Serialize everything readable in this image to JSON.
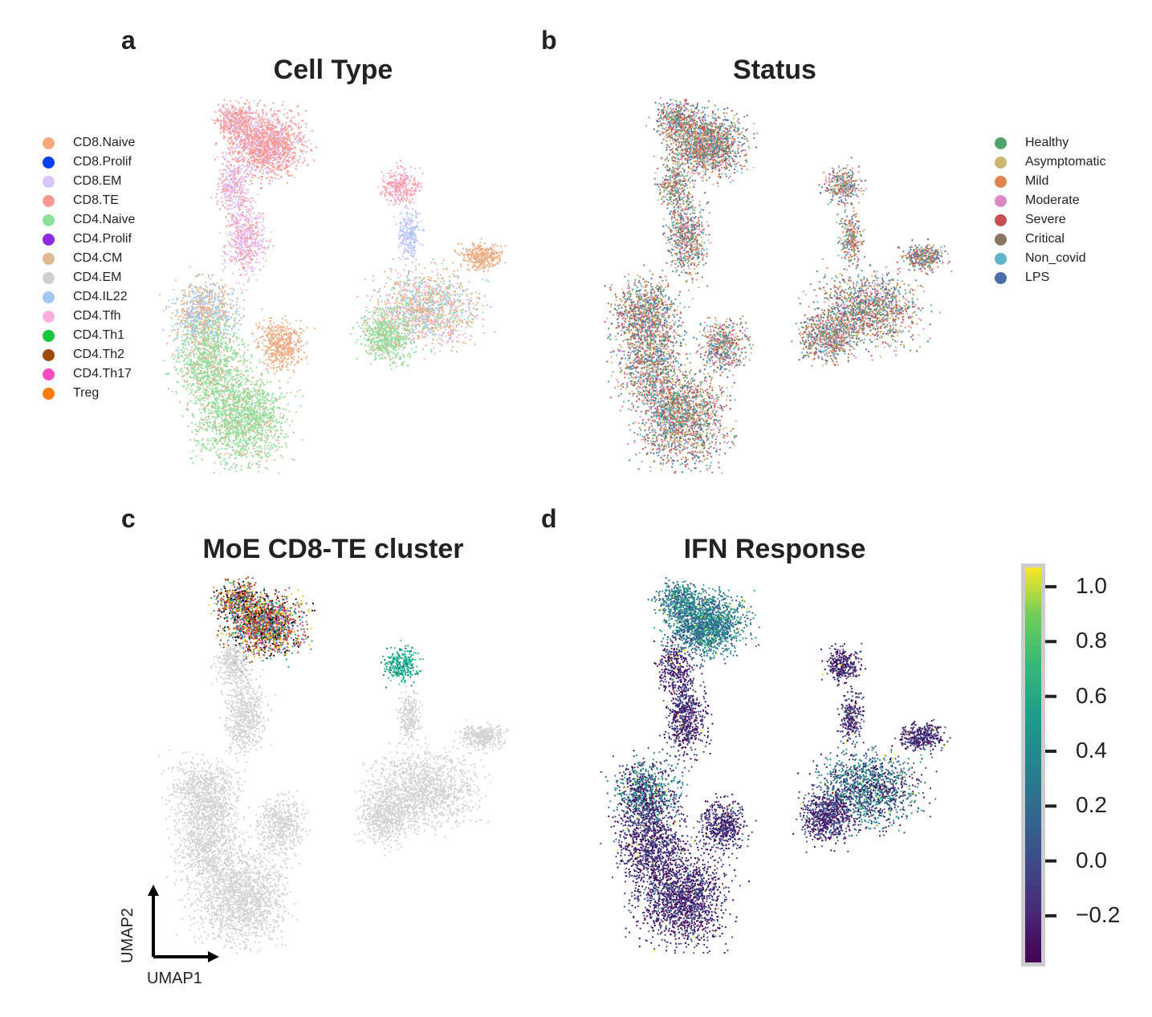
{
  "panels": [
    {
      "letter": "a",
      "title": "Cell Type"
    },
    {
      "letter": "b",
      "title": "Status"
    },
    {
      "letter": "c",
      "title": "MoE CD8-TE cluster"
    },
    {
      "letter": "d",
      "title": "IFN Response"
    }
  ],
  "axes": {
    "x": "UMAP1",
    "y": "UMAP2"
  },
  "chart_data": [
    {
      "type": "scatter",
      "title": "Cell Type",
      "legend_position": "left",
      "legend": [
        {
          "name": "CD8.Naive",
          "color": "#f7a97b"
        },
        {
          "name": "CD8.Prolif",
          "color": "#0a3ff2"
        },
        {
          "name": "CD8.EM",
          "color": "#d6c4fb"
        },
        {
          "name": "CD8.TE",
          "color": "#fb9a94"
        },
        {
          "name": "CD4.Naive",
          "color": "#8ee09b"
        },
        {
          "name": "CD4.Prolif",
          "color": "#8b2be2"
        },
        {
          "name": "CD4.CM",
          "color": "#dcb896"
        },
        {
          "name": "CD4.EM",
          "color": "#cfcfcf"
        },
        {
          "name": "CD4.IL22",
          "color": "#a3c8f3"
        },
        {
          "name": "CD4.Tfh",
          "color": "#f9aedf"
        },
        {
          "name": "CD4.Th1",
          "color": "#17c43c"
        },
        {
          "name": "CD4.Th2",
          "color": "#9e4a0b"
        },
        {
          "name": "CD4.Th17",
          "color": "#f84cc1"
        },
        {
          "name": "Treg",
          "color": "#fa7a0c"
        }
      ]
    },
    {
      "type": "scatter",
      "title": "Status",
      "legend_position": "right",
      "legend": [
        {
          "name": "Healthy",
          "color": "#4fa36a"
        },
        {
          "name": "Asymptomatic",
          "color": "#cdb672"
        },
        {
          "name": "Mild",
          "color": "#e0834d"
        },
        {
          "name": "Moderate",
          "color": "#db88c3"
        },
        {
          "name": "Severe",
          "color": "#c44e52"
        },
        {
          "name": "Critical",
          "color": "#8c7660"
        },
        {
          "name": "Non_covid",
          "color": "#5fb3cd"
        },
        {
          "name": "LPS",
          "color": "#4a6ea9"
        }
      ]
    },
    {
      "type": "scatter",
      "title": "MoE CD8-TE cluster",
      "background_color": "#d3d3d3",
      "highlight": "CD8.TE cluster"
    },
    {
      "type": "scatter",
      "title": "IFN Response",
      "colorbar": {
        "colormap": "viridis",
        "range": [
          -0.37,
          1.07
        ],
        "ticks": [
          "−0.2",
          "0.0",
          "0.2",
          "0.4",
          "0.6",
          "0.8",
          "1.0"
        ],
        "tick_values": [
          -0.2,
          0.0,
          0.2,
          0.4,
          0.6,
          0.8,
          1.0
        ]
      }
    }
  ]
}
